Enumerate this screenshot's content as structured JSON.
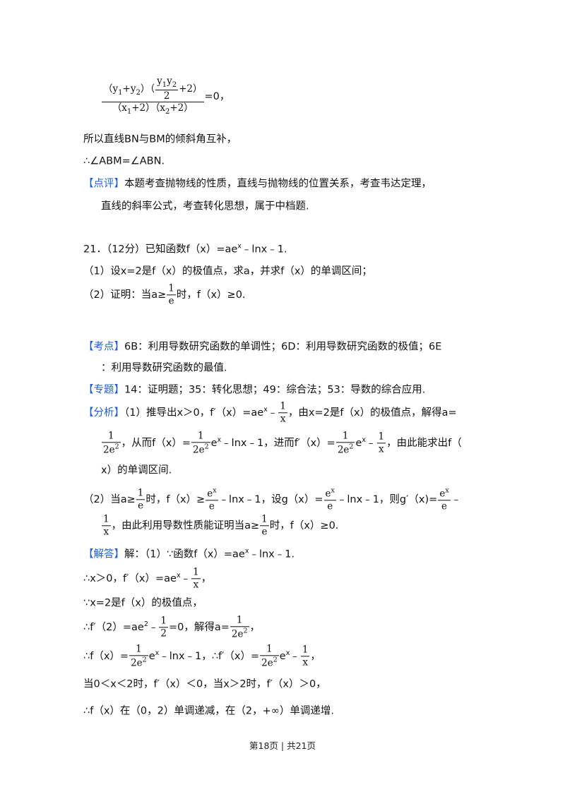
{
  "page": {
    "label_color": "#1f5fd6",
    "footer": "第18页 | 共21页",
    "lines": [
      [
        {
          "f": [
            [
              "（y",
              {
                "sub": "1"
              },
              "+y",
              {
                "sub": "2"
              },
              "）（",
              {
                "f": [
                  [
                    "y",
                    {
                      "sub": "1"
                    },
                    "y",
                    {
                      "sub": "2"
                    }
                  ],
                  [
                    "2"
                  ]
                ]
              },
              "+2）"
            ],
            [
              "（x",
              {
                "sub": "1"
              },
              "+2）（x",
              {
                "sub": "2"
              },
              "+2）"
            ]
          ]
        },
        "=0，"
      ],
      [
        "所以直线BN与BM的倾斜角互补，"
      ],
      [
        "∴∠ABM=∠ABN."
      ],
      [
        {
          "tag": "【点评】"
        },
        "本题考查抛物线的性质，直线与抛物线的位置关系，考查韦达定理，"
      ],
      [
        "直线的斜率公式，考查转化思想，属于中档题."
      ],
      [
        "21．（12分）已知函数f（x）=ae",
        {
          "sup": "x"
        },
        "﹣lnx﹣1."
      ],
      [
        "（1）设x=2是f（x）的极值点，求a，并求f（x）的单调区间；"
      ],
      [
        "（2）证明：当a≥",
        {
          "f": [
            [
              "1"
            ],
            [
              "e"
            ]
          ]
        },
        "时，f（x）≥0."
      ],
      [
        {
          "tag": "【考点】"
        },
        "6B：利用导数研究函数的单调性；6D：利用导数研究函数的极值；6E"
      ],
      [
        "：利用导数研究函数的最值."
      ],
      [
        {
          "tag": "【专题】"
        },
        "14：证明题；35：转化思想；49：综合法；53：导数的综合应用."
      ],
      [
        {
          "tag": "【分析】"
        },
        "（1）推导出x＞0，f′（x）=ae",
        {
          "sup": "x"
        },
        "﹣",
        {
          "f": [
            [
              "1"
            ],
            [
              "x"
            ]
          ]
        },
        "，由x=2是f（x）的极值点，解得a="
      ],
      [
        {
          "f": [
            [
              "1"
            ],
            [
              "2e",
              {
                "sup": "2"
              }
            ]
          ]
        },
        "，从而f（x）=",
        {
          "f": [
            [
              "1"
            ],
            [
              "2e",
              {
                "sup": "2"
              }
            ]
          ]
        },
        "e",
        {
          "sup": "x"
        },
        "﹣lnx﹣1，进而f′（x）=",
        {
          "f": [
            [
              "1"
            ],
            [
              "2e",
              {
                "sup": "2"
              }
            ]
          ]
        },
        "e",
        {
          "sup": "x"
        },
        "﹣",
        {
          "f": [
            [
              "1"
            ],
            [
              "x"
            ]
          ]
        },
        "，由此能求出f（"
      ],
      [
        "x）的单调区间."
      ],
      [
        "（2）当a≥",
        {
          "f": [
            [
              "1"
            ],
            [
              "e"
            ]
          ]
        },
        "时，f（x）≥",
        {
          "f": [
            [
              "e",
              {
                "sup": "x"
              }
            ],
            [
              "e"
            ]
          ]
        },
        "﹣lnx﹣1，设g（x）=",
        {
          "f": [
            [
              "e",
              {
                "sup": "x"
              }
            ],
            [
              "e"
            ]
          ]
        },
        "﹣lnx﹣1，则g′（x)=",
        {
          "f": [
            [
              "e",
              {
                "sup": "x"
              }
            ],
            [
              "e"
            ]
          ]
        },
        "﹣"
      ],
      [
        {
          "f": [
            [
              "1"
            ],
            [
              "x"
            ]
          ]
        },
        "，由此利用导数性质能证明当a≥",
        {
          "f": [
            [
              "1"
            ],
            [
              "e"
            ]
          ]
        },
        "时，f（x）≥0."
      ],
      [
        {
          "tag": "【解答】"
        },
        "解：（1）∵函数f（x）=ae",
        {
          "sup": "x"
        },
        "﹣lnx﹣1."
      ],
      [
        "∴x＞0，f′（x）=ae",
        {
          "sup": "x"
        },
        "﹣",
        {
          "f": [
            [
              "1"
            ],
            [
              "x"
            ]
          ]
        },
        "，"
      ],
      [
        "∵x=2是f（x）的极值点，"
      ],
      [
        "∴f′（2）=ae",
        {
          "sup": "2"
        },
        "﹣",
        {
          "f": [
            [
              "1"
            ],
            [
              "2"
            ]
          ]
        },
        "=0，解得a=",
        {
          "f": [
            [
              "1"
            ],
            [
              "2e",
              {
                "sup": "2"
              }
            ]
          ]
        },
        "，"
      ],
      [
        "∴f（x）=",
        {
          "f": [
            [
              "1"
            ],
            [
              "2e",
              {
                "sup": "2"
              }
            ]
          ]
        },
        "e",
        {
          "sup": "x"
        },
        "﹣lnx﹣1，∴f′（x）=",
        {
          "f": [
            [
              "1"
            ],
            [
              "2e",
              {
                "sup": "2"
              }
            ]
          ]
        },
        "e",
        {
          "sup": "x"
        },
        "﹣",
        {
          "f": [
            [
              "1"
            ],
            [
              "x"
            ]
          ]
        },
        "，"
      ],
      [
        "当0＜x＜2时，f′（x）＜0，当x＞2时，f′（x）＞0，"
      ],
      [
        "∴f（x）在（0，2）单调递减，在（2，+∞）单调递增."
      ]
    ]
  }
}
